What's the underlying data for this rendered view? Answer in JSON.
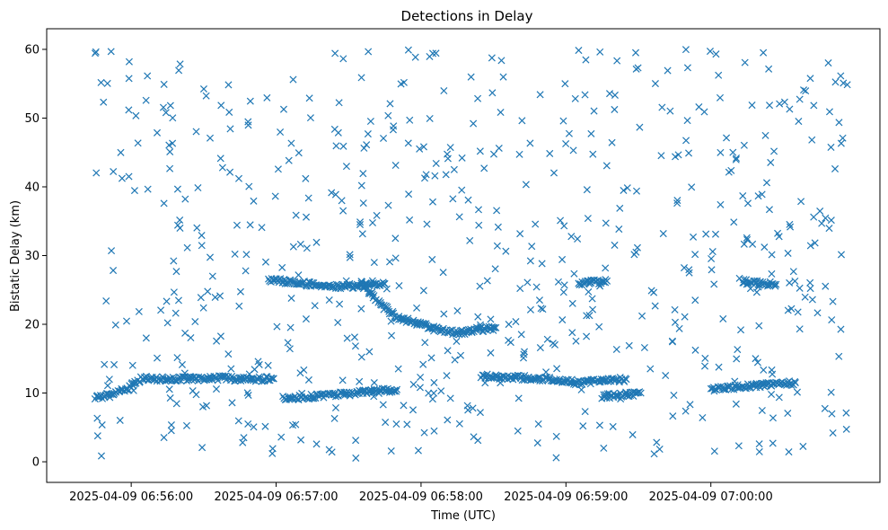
{
  "chart_data": {
    "type": "scatter",
    "title": "Detections in Delay",
    "xlabel": "Time (UTC)",
    "ylabel": "Bistatic Delay (km)",
    "marker": "x",
    "color": "#1f77b4",
    "xlim_seconds": [
      -20,
      325
    ],
    "ylim": [
      -3,
      63
    ],
    "x_origin": "2025-04-09 06:55:45",
    "x_unit": "seconds since x_origin",
    "xticks": [
      {
        "t": 15,
        "label": "2025-04-09 06:56:00"
      },
      {
        "t": 75,
        "label": "2025-04-09 06:57:00"
      },
      {
        "t": 135,
        "label": "2025-04-09 06:58:00"
      },
      {
        "t": 195,
        "label": "2025-04-09 06:59:00"
      },
      {
        "t": 255,
        "label": "2025-04-09 07:00:00"
      }
    ],
    "yticks": [
      0,
      10,
      20,
      30,
      40,
      50,
      60
    ],
    "track_segments": [
      {
        "name": "lower-track-a",
        "points": [
          [
            0,
            9.3
          ],
          [
            8,
            9.8
          ],
          [
            20,
            12.2
          ],
          [
            30,
            12.0
          ],
          [
            50,
            12.2
          ],
          [
            64,
            12.0
          ],
          [
            74,
            12.1
          ]
        ]
      },
      {
        "name": "lower-track-b",
        "points": [
          [
            78,
            9.2
          ],
          [
            95,
            9.6
          ],
          [
            110,
            10.1
          ],
          [
            125,
            10.5
          ]
        ]
      },
      {
        "name": "lower-track-c",
        "points": [
          [
            160,
            12.5
          ],
          [
            178,
            12.2
          ],
          [
            190,
            12.0
          ],
          [
            200,
            11.5
          ],
          [
            220,
            12.0
          ]
        ]
      },
      {
        "name": "lower-track-d",
        "points": [
          [
            210,
            9.5
          ],
          [
            226,
            10.0
          ]
        ]
      },
      {
        "name": "lower-track-e",
        "points": [
          [
            255,
            10.5
          ],
          [
            270,
            11.0
          ],
          [
            290,
            11.5
          ]
        ]
      },
      {
        "name": "upper-track-a",
        "points": [
          [
            72,
            26.5
          ],
          [
            90,
            25.8
          ],
          [
            102,
            25.5
          ],
          [
            120,
            25.9
          ]
        ]
      },
      {
        "name": "upper-track-b",
        "points": [
          [
            110,
            26.0
          ],
          [
            118,
            23.0
          ],
          [
            125,
            21.0
          ],
          [
            140,
            19.5
          ],
          [
            150,
            18.7
          ],
          [
            158,
            19.2
          ],
          [
            166,
            19.5
          ]
        ]
      },
      {
        "name": "upper-track-c",
        "points": [
          [
            200,
            26.0
          ],
          [
            212,
            26.3
          ]
        ]
      },
      {
        "name": "upper-track-d",
        "points": [
          [
            268,
            26.2
          ],
          [
            282,
            25.8
          ]
        ]
      }
    ],
    "background_scatter": {
      "count": 640,
      "x_range": [
        0,
        312
      ],
      "y_range": [
        0.5,
        60
      ],
      "seed": 1337
    }
  }
}
